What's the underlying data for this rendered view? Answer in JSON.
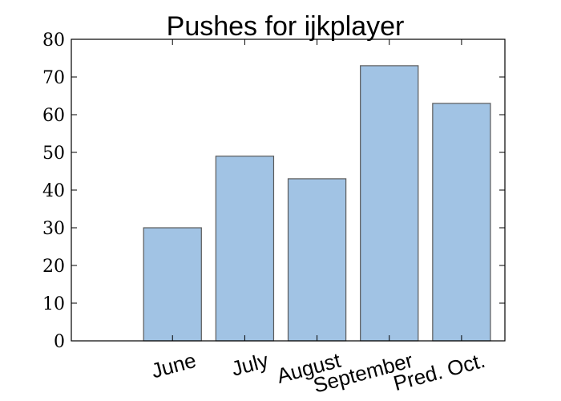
{
  "chart_data": {
    "type": "bar",
    "title": "Pushes for ijkplayer",
    "xlabel": "",
    "ylabel": "",
    "categories": [
      "June",
      "July",
      "August",
      "September",
      "Pred. Oct."
    ],
    "values": [
      30,
      49,
      43,
      73,
      63
    ],
    "ylim": [
      0,
      80
    ],
    "yticks": [
      0,
      10,
      20,
      30,
      40,
      50,
      60,
      70,
      80
    ],
    "bar_color": "#a1c3e4",
    "bar_edge_color": "#5a5a5a",
    "grid": false
  }
}
